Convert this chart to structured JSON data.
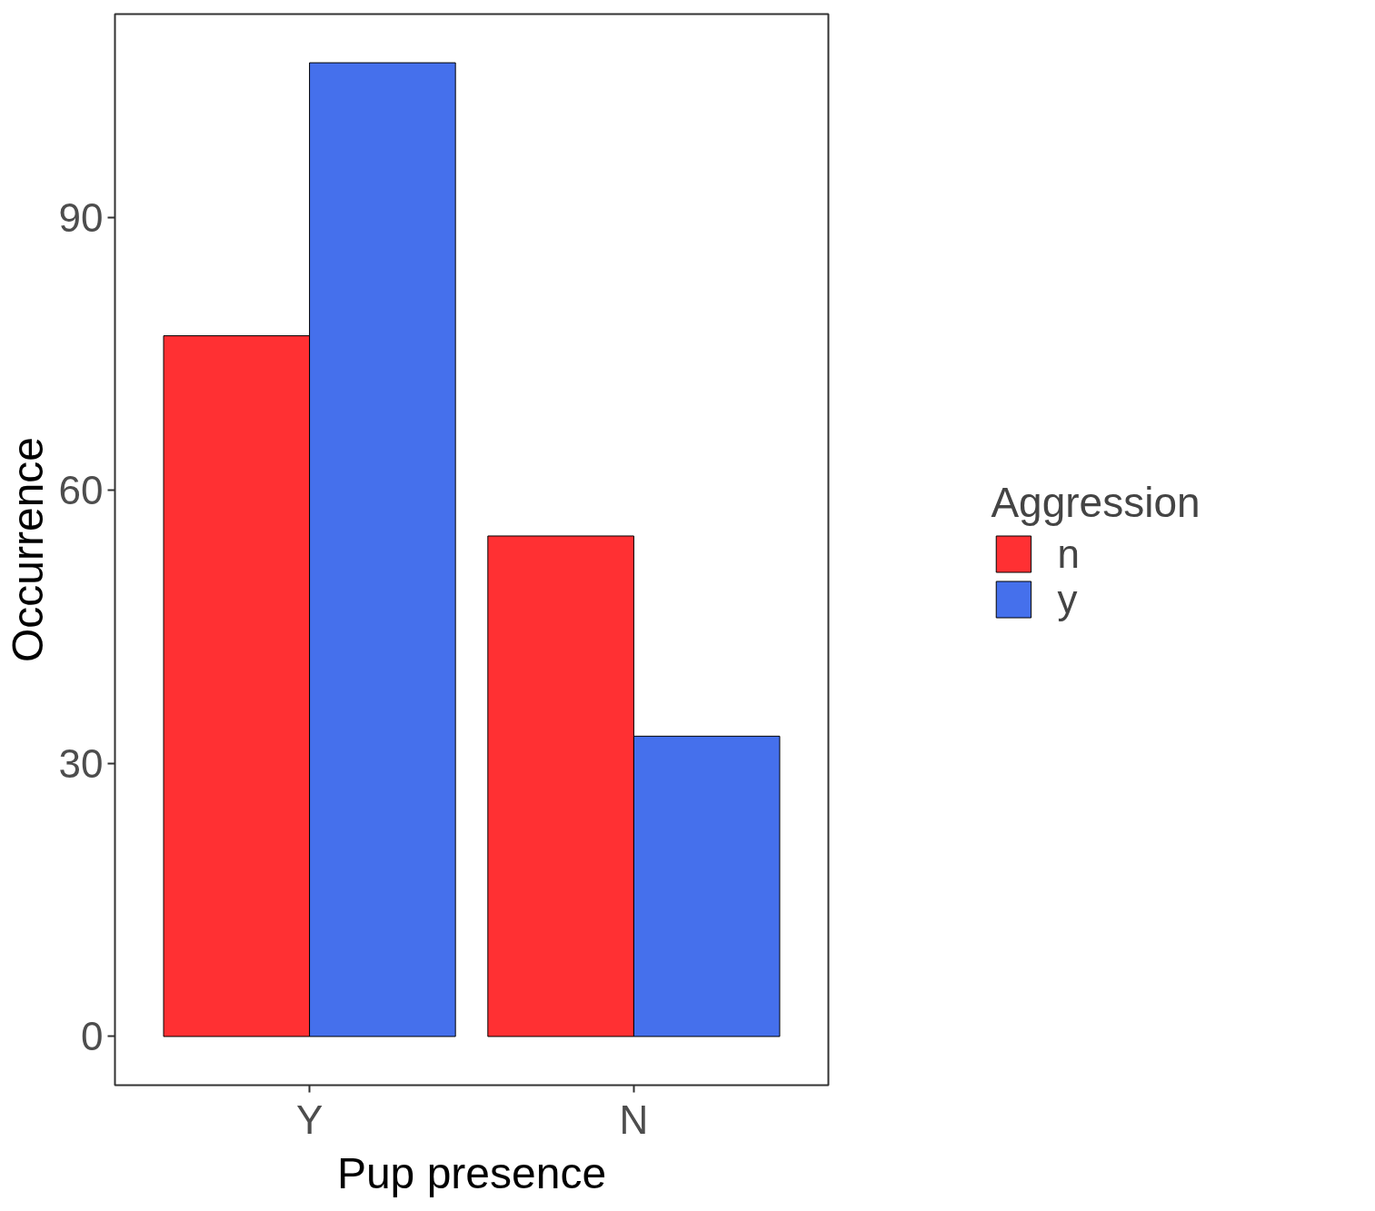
{
  "chart_data": {
    "type": "bar",
    "xlabel": "Pup presence",
    "ylabel": "Occurrence",
    "legend_title": "Aggression",
    "categories": [
      "Y",
      "N"
    ],
    "series": [
      {
        "name": "n",
        "color": "#ff3033",
        "values": [
          77,
          55
        ]
      },
      {
        "name": "y",
        "color": "#4570ec",
        "values": [
          107,
          33
        ]
      }
    ],
    "ylim": [
      -5.35,
      112.35
    ],
    "yticks": [
      0,
      30,
      60,
      90
    ],
    "grid": false,
    "legend": "right"
  }
}
